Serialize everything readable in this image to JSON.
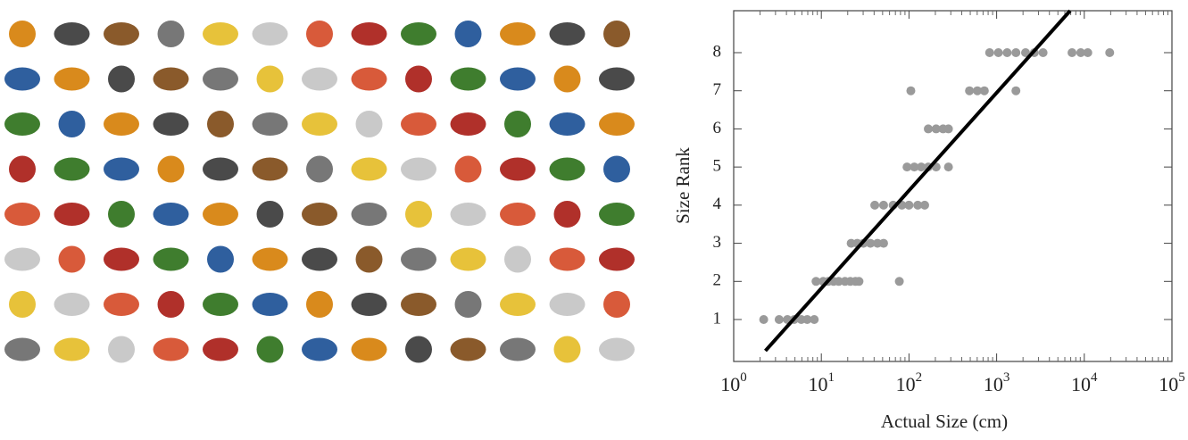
{
  "chart_data": {
    "type": "scatter",
    "xlabel": "Actual Size (cm)",
    "ylabel": "Size Rank",
    "xscale": "log",
    "xlim": [
      1,
      100000
    ],
    "ylim": [
      -0.1,
      9.1
    ],
    "xticks": [
      {
        "value": 1,
        "label": "10",
        "exponent": "0"
      },
      {
        "value": 10,
        "label": "10",
        "exponent": "1"
      },
      {
        "value": 100,
        "label": "10",
        "exponent": "2"
      },
      {
        "value": 1000,
        "label": "10",
        "exponent": "3"
      },
      {
        "value": 10000,
        "label": "10",
        "exponent": "4"
      },
      {
        "value": 100000,
        "label": "10",
        "exponent": "5"
      }
    ],
    "xminor_ticks": [
      2,
      3,
      4,
      5,
      6,
      7,
      8,
      9,
      20,
      30,
      40,
      50,
      60,
      70,
      80,
      90,
      200,
      300,
      400,
      500,
      600,
      700,
      800,
      900,
      2000,
      3000,
      4000,
      5000,
      6000,
      7000,
      8000,
      9000,
      20000,
      30000,
      40000,
      50000,
      60000,
      70000,
      80000,
      90000
    ],
    "yticks": [
      1,
      2,
      3,
      4,
      5,
      6,
      7,
      8
    ],
    "series": [
      {
        "color": "#9a9a9a",
        "x": [
          2.2,
          3.3,
          4.1,
          4.9,
          5.9,
          6.9,
          8.3,
          8.7,
          10.5,
          12,
          13.8,
          15.8,
          18.6,
          21.4,
          24.5,
          26.9,
          77.6,
          21.9,
          25.7,
          30.2,
          36.3,
          43.7,
          51.3,
          40.7,
          51.3,
          66,
          83,
          100,
          126,
          151,
          95,
          115,
          138,
          166,
          204,
          282,
          166,
          204,
          245,
          282,
          105,
          490,
          603,
          724,
          1660,
          832,
          1047,
          1318,
          1660,
          2138,
          2692,
          3388,
          7244,
          9120,
          10965,
          19498
        ],
        "values": [
          1,
          1,
          1,
          1,
          1,
          1,
          1,
          2,
          2,
          2,
          2,
          2,
          2,
          2,
          2,
          2,
          2,
          3,
          3,
          3,
          3,
          3,
          3,
          4,
          4,
          4,
          4,
          4,
          4,
          4,
          5,
          5,
          5,
          5,
          5,
          5,
          6,
          6,
          6,
          6,
          7,
          7,
          7,
          7,
          7,
          8,
          8,
          8,
          8,
          8,
          8,
          8,
          8,
          8,
          8,
          8
        ]
      }
    ],
    "fit_line": {
      "color": "#000000",
      "x": [
        2.3,
        6900
      ],
      "values": [
        0.18,
        9.1
      ]
    }
  }
}
